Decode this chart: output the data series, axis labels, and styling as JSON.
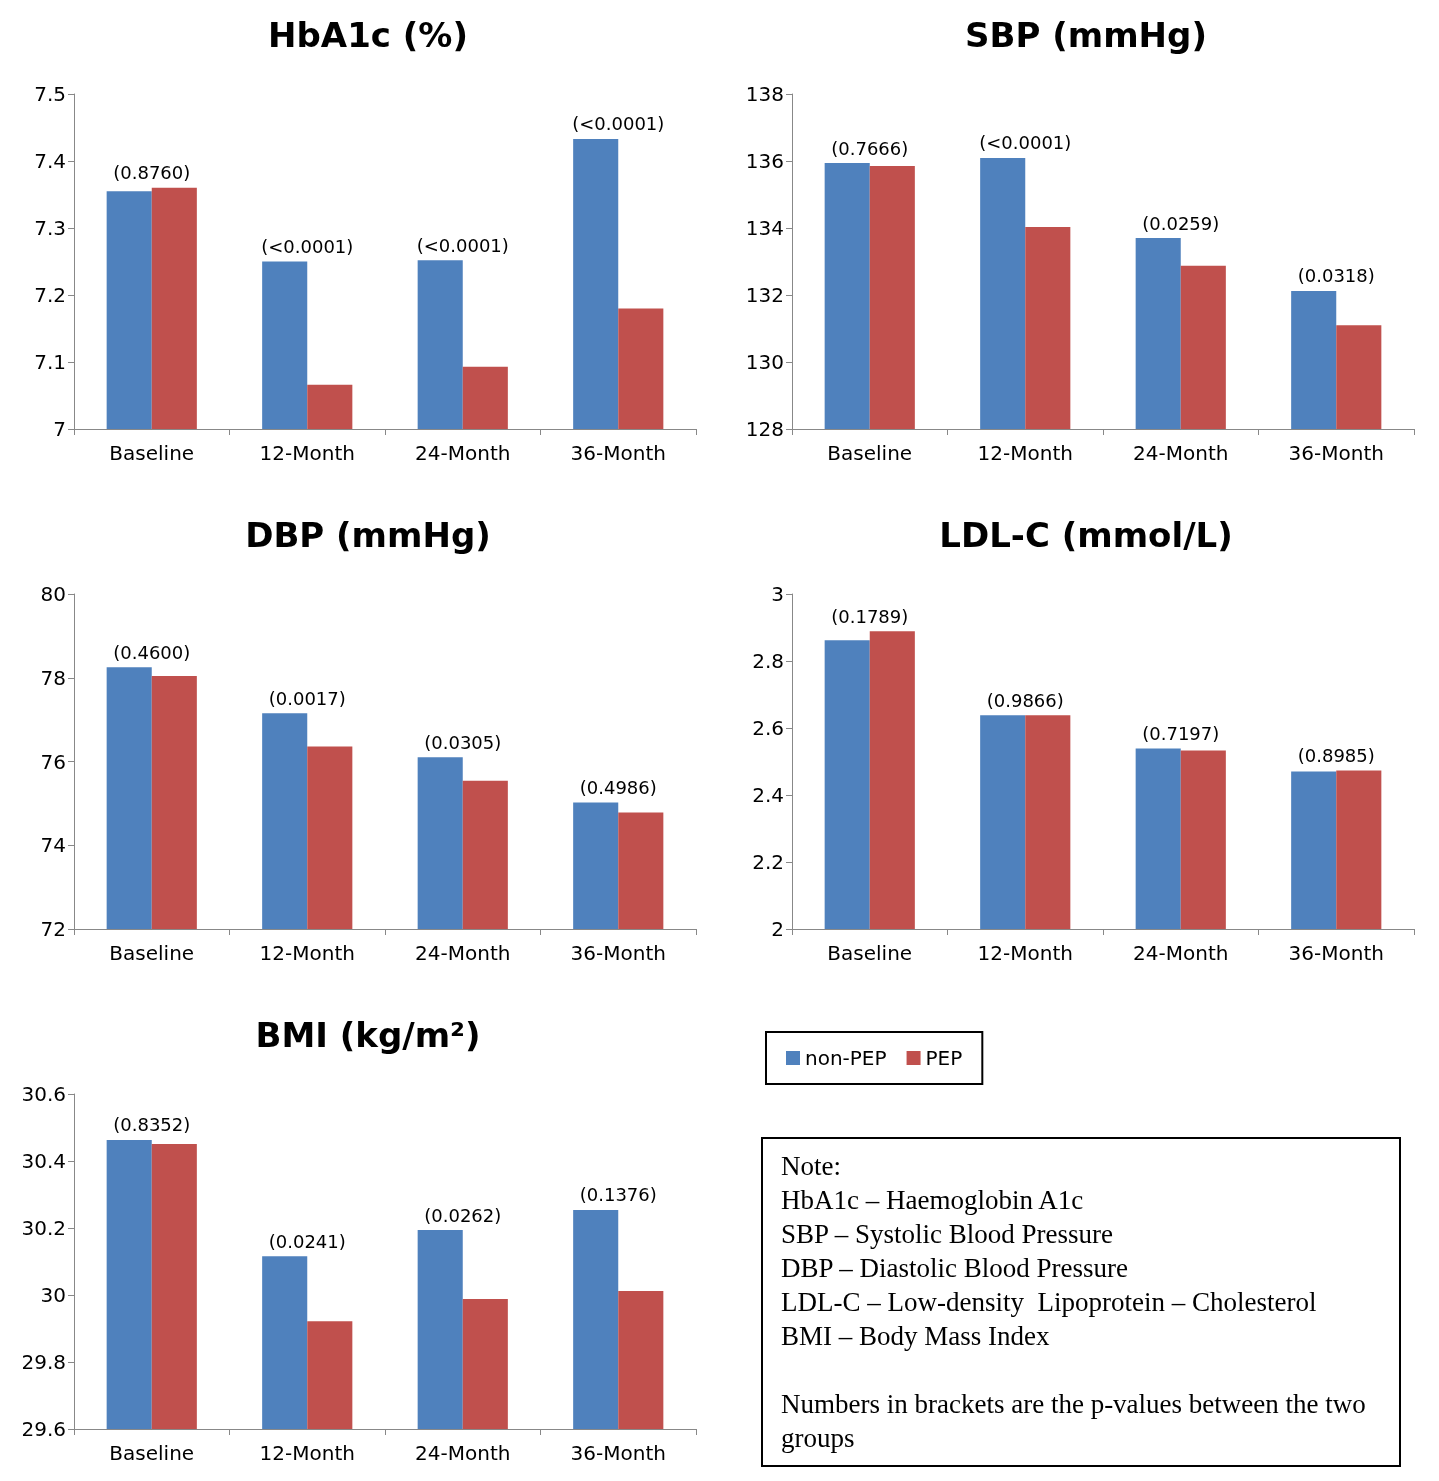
{
  "chart_data": [
    {
      "type": "bar",
      "title": "HbA1c (%)",
      "categories": [
        "Baseline",
        "12-Month",
        "24-Month",
        "36-Month"
      ],
      "series": [
        {
          "color": "#4f81bd",
          "values": [
            7.355,
            7.25,
            7.252,
            7.433
          ]
        },
        {
          "color": "#c0504d",
          "values": [
            7.36,
            7.066,
            7.093,
            7.18
          ]
        }
      ],
      "ylim": [
        7,
        7.5
      ],
      "yticks": [
        7,
        7.1,
        7.2,
        7.3,
        7.4,
        7.5
      ],
      "grid": false,
      "annotations": [
        {
          "text": "(0.8760)",
          "x": "Baseline",
          "y": 7.36
        },
        {
          "text": "(<0.0001)",
          "x": "12-Month",
          "y": 7.25
        },
        {
          "text": "(<0.0001)",
          "x": "24-Month",
          "y": 7.252
        },
        {
          "text": "(<0.0001)",
          "x": "36-Month",
          "y": 7.433
        }
      ]
    },
    {
      "type": "bar",
      "title": "SBP (mmHg)",
      "categories": [
        "Baseline",
        "12-Month",
        "24-Month",
        "36-Month"
      ],
      "series": [
        {
          "color": "#4f81bd",
          "values": [
            135.94,
            136.09,
            133.7,
            132.12
          ]
        },
        {
          "color": "#c0504d",
          "values": [
            135.85,
            134.03,
            132.87,
            131.1
          ]
        }
      ],
      "ylim": [
        128,
        138
      ],
      "yticks": [
        128,
        130,
        132,
        134,
        136,
        138
      ],
      "grid": false,
      "annotations": [
        {
          "text": "(0.7666)",
          "x": "Baseline",
          "y": 135.94
        },
        {
          "text": "(<0.0001)",
          "x": "12-Month",
          "y": 136.09
        },
        {
          "text": "(0.0259)",
          "x": "24-Month",
          "y": 133.7
        },
        {
          "text": "(0.0318)",
          "x": "36-Month",
          "y": 132.12
        }
      ]
    },
    {
      "type": "bar",
      "title": "DBP (mmHg)",
      "categories": [
        "Baseline",
        "12-Month",
        "24-Month",
        "36-Month"
      ],
      "series": [
        {
          "color": "#4f81bd",
          "values": [
            78.25,
            77.15,
            76.1,
            75.02
          ]
        },
        {
          "color": "#c0504d",
          "values": [
            78.04,
            76.36,
            75.54,
            74.78
          ]
        }
      ],
      "ylim": [
        72,
        80
      ],
      "yticks": [
        72,
        74,
        76,
        78,
        80
      ],
      "grid": false,
      "annotations": [
        {
          "text": "(0.4600)",
          "x": "Baseline",
          "y": 78.25
        },
        {
          "text": "(0.0017)",
          "x": "12-Month",
          "y": 77.15
        },
        {
          "text": "(0.0305)",
          "x": "24-Month",
          "y": 76.1
        },
        {
          "text": "(0.4986)",
          "x": "36-Month",
          "y": 75.02
        }
      ]
    },
    {
      "type": "bar",
      "title": "LDL-C (mmol/L)",
      "categories": [
        "Baseline",
        "12-Month",
        "24-Month",
        "36-Month"
      ],
      "series": [
        {
          "color": "#4f81bd",
          "values": [
            2.862,
            2.638,
            2.539,
            2.47
          ]
        },
        {
          "color": "#c0504d",
          "values": [
            2.889,
            2.638,
            2.533,
            2.473
          ]
        }
      ],
      "ylim": [
        2,
        3
      ],
      "yticks": [
        2,
        2.2,
        2.4,
        2.6,
        2.8,
        3
      ],
      "grid": false,
      "annotations": [
        {
          "text": "(0.1789)",
          "x": "Baseline",
          "y": 2.889
        },
        {
          "text": "(0.9866)",
          "x": "12-Month",
          "y": 2.638
        },
        {
          "text": "(0.7197)",
          "x": "24-Month",
          "y": 2.539
        },
        {
          "text": "(0.8985)",
          "x": "36-Month",
          "y": 2.473
        }
      ]
    },
    {
      "type": "bar",
      "title": "BMI (kg/m²)",
      "categories": [
        "Baseline",
        "12-Month",
        "24-Month",
        "36-Month"
      ],
      "series": [
        {
          "name": "non-PEP",
          "color": "#4f81bd",
          "values": [
            30.463,
            30.116,
            30.194,
            30.254
          ]
        },
        {
          "name": "PEP",
          "color": "#c0504d",
          "values": [
            30.451,
            29.922,
            29.988,
            30.012
          ]
        }
      ],
      "ylim": [
        29.6,
        30.6
      ],
      "yticks": [
        29.6,
        29.8,
        30,
        30.2,
        30.4,
        30.6
      ],
      "grid": false,
      "legend": "right",
      "annotations": [
        {
          "text": "(0.8352)",
          "x": "Baseline",
          "y": 30.463
        },
        {
          "text": "(0.0241)",
          "x": "12-Month",
          "y": 30.116
        },
        {
          "text": "(0.0262)",
          "x": "24-Month",
          "y": 30.194
        },
        {
          "text": "(0.1376)",
          "x": "36-Month",
          "y": 30.254
        }
      ]
    },
    {
      "type": "other",
      "title": "Note:",
      "annotations": [
        "HbA1c – Haemoglobin A1c",
        "SBP – Systolic Blood Pressure",
        "DBP – Diastolic Blood Pressure",
        "LDL-C – Low-density  Lipoprotein – Cholesterol",
        "BMI – Body Mass Index",
        "Numbers in brackets are the p-values between the two groups"
      ]
    }
  ]
}
